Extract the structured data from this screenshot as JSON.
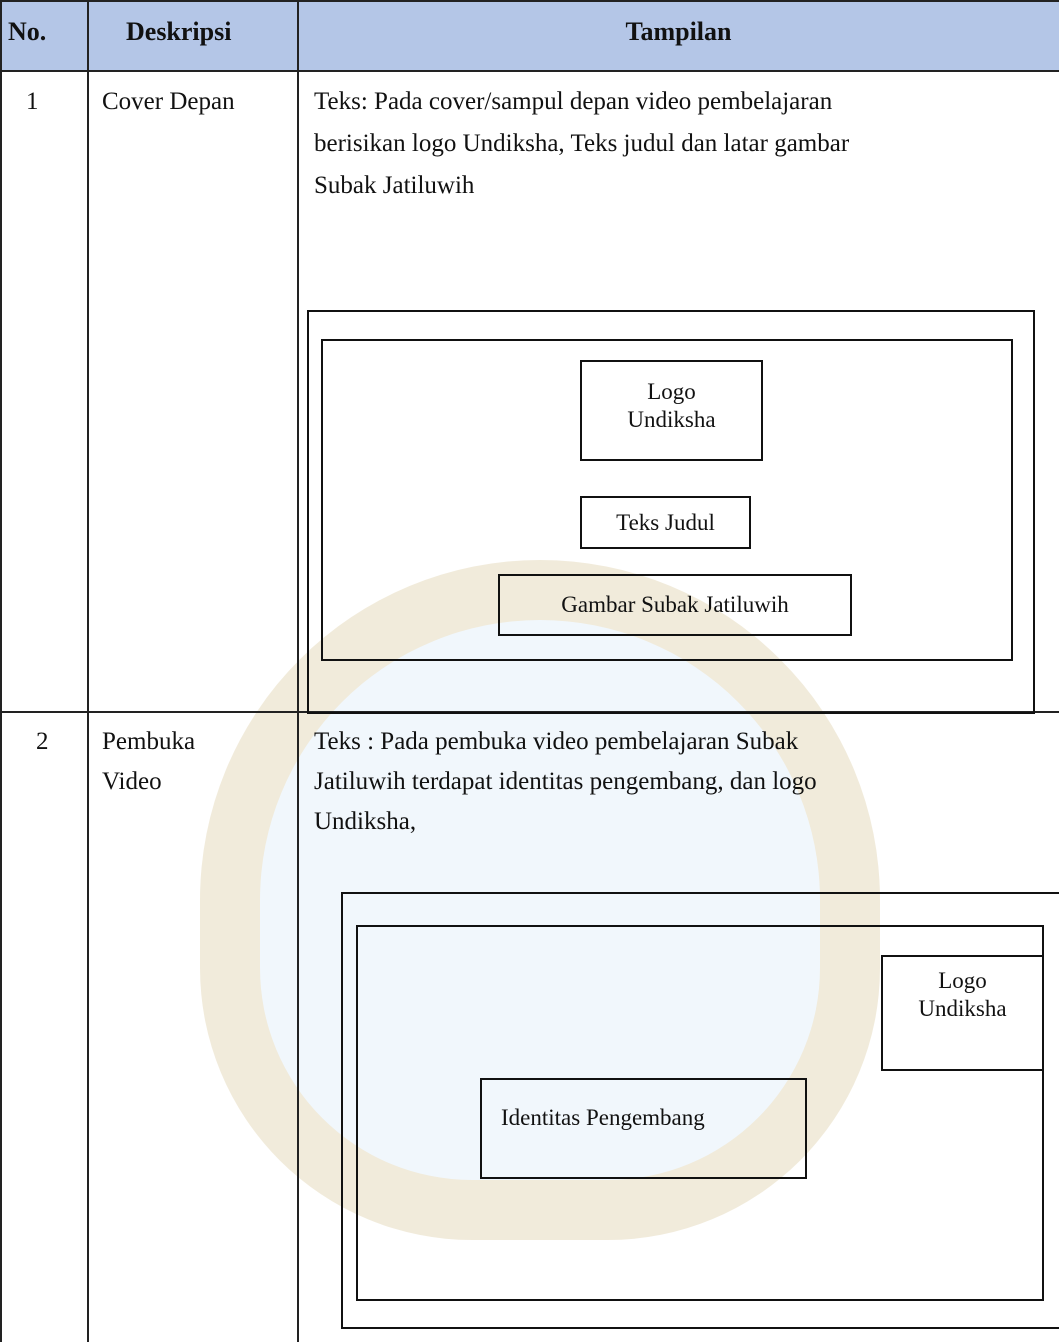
{
  "table": {
    "header": [
      "No.",
      "Deskripsi",
      "Tampilan"
    ],
    "rows": [
      {
        "no": "1",
        "description": [
          "Cover Depan"
        ],
        "text": [
          "Teks: Pada cover/sampul depan video pembelajaran",
          "berisikan logo Undiksha, Teks judul dan latar gambar",
          "Subak Jatiluwih"
        ],
        "boxes": [
          [
            "Logo",
            "Undiksha"
          ],
          [
            "Teks Judul"
          ],
          [
            "Gambar Subak Jatiluwih"
          ]
        ]
      },
      {
        "no": "2",
        "description": [
          "Pembuka",
          "Video"
        ],
        "text": [
          "Teks : Pada pembuka video pembelajaran Subak",
          "Jatiluwih terdapat identitas pengembang, dan logo",
          "Undiksha,"
        ],
        "boxes": [
          [
            "Logo",
            "Undiksha"
          ],
          [
            "Identitas Pengembang"
          ]
        ]
      }
    ]
  }
}
